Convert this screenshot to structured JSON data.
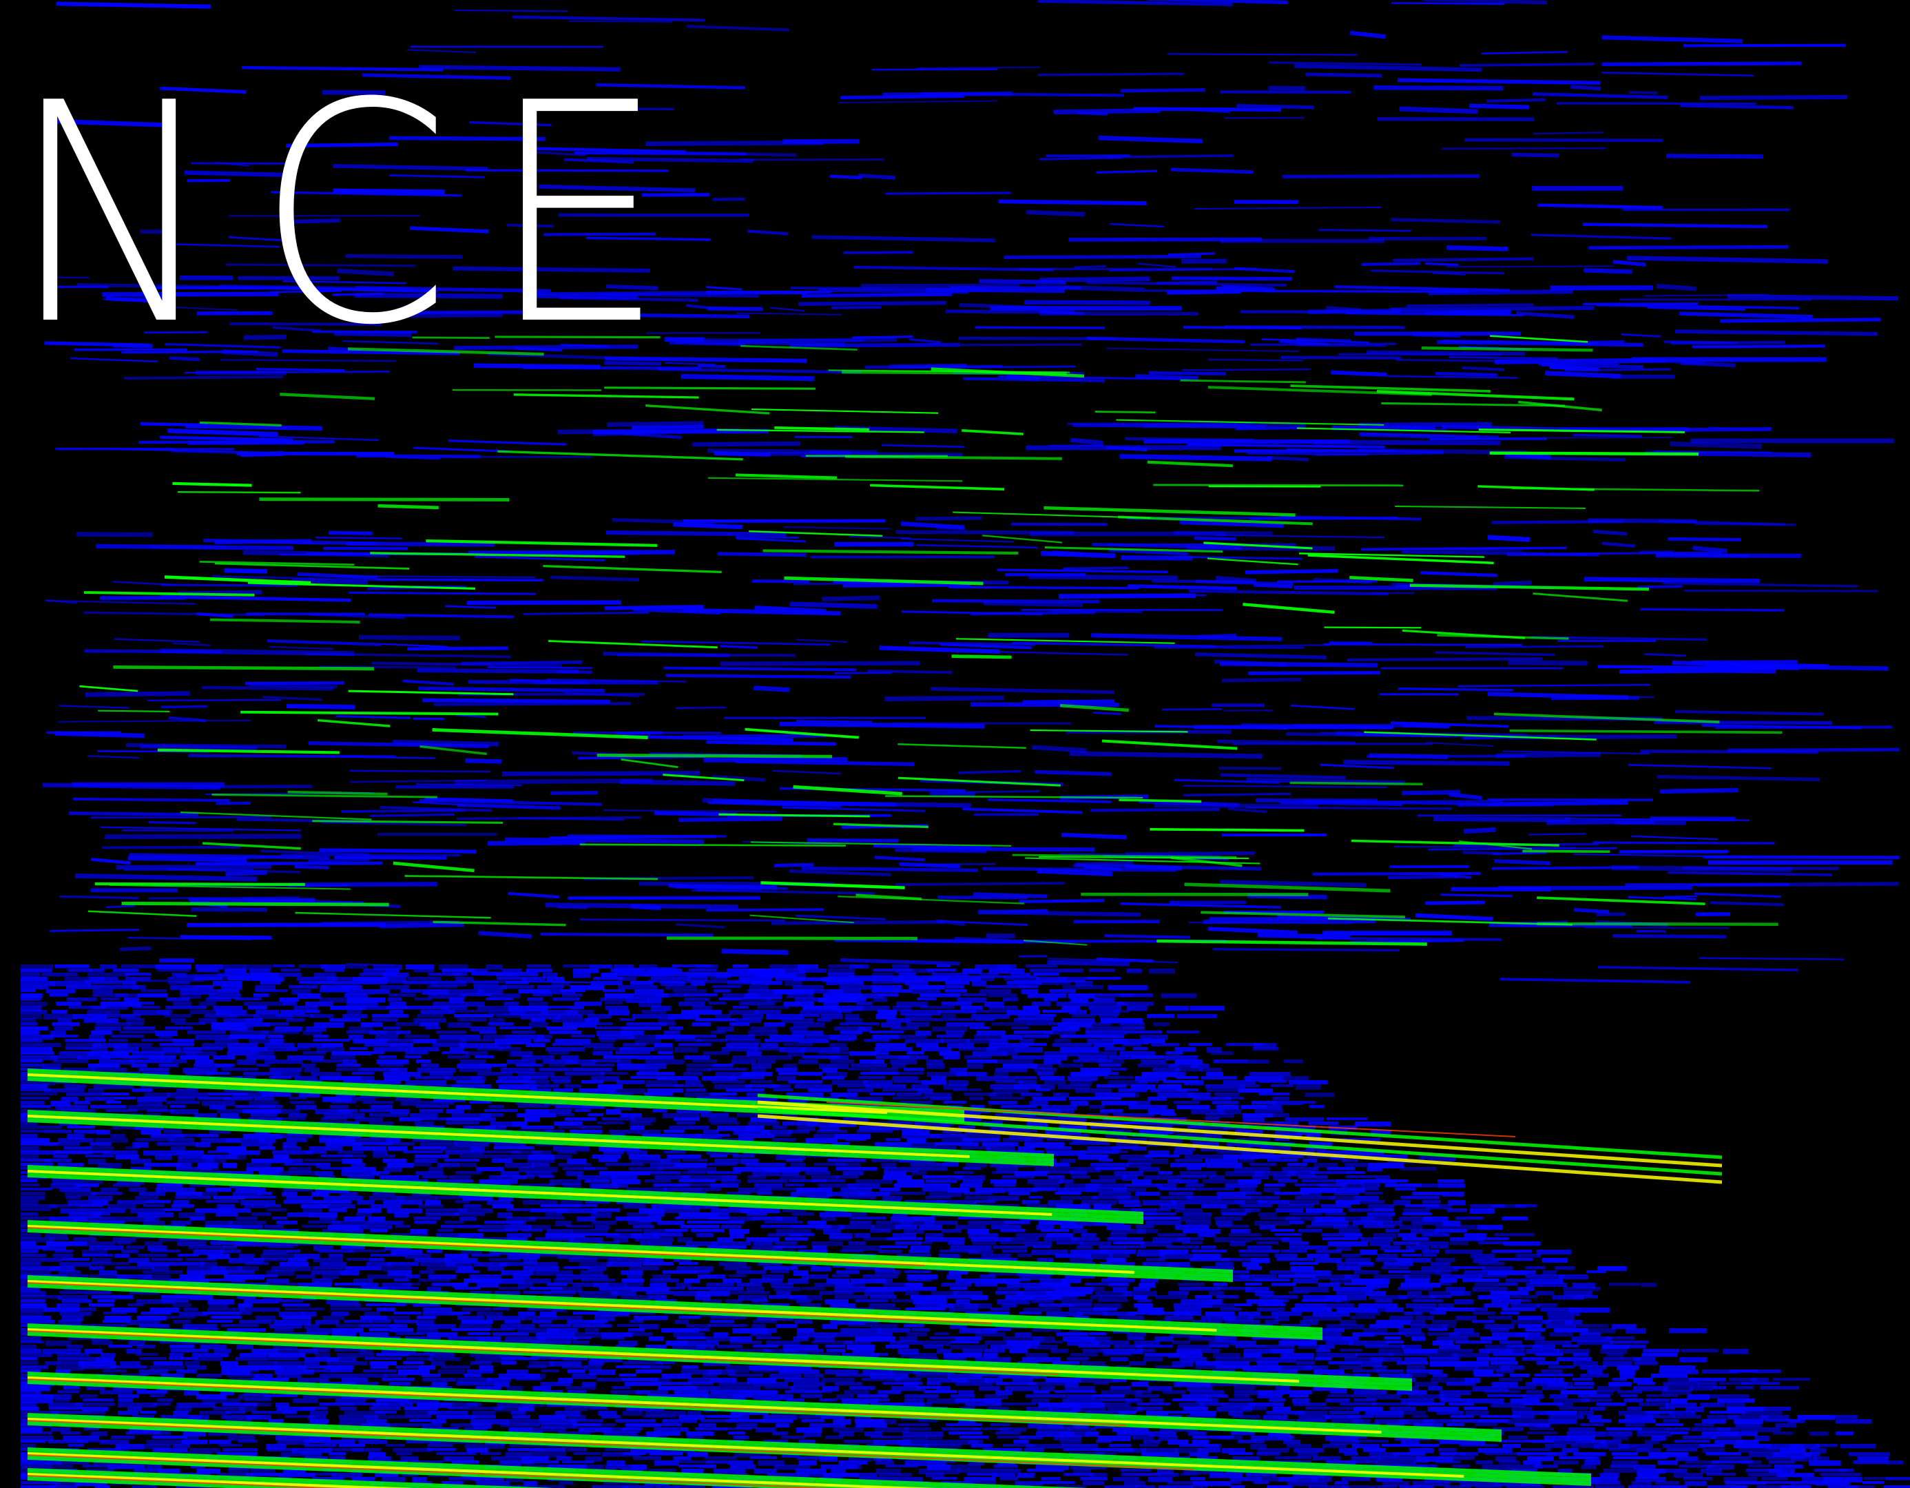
{
  "title_text": "NCE",
  "spectrogram": {
    "description_colormap": "jet",
    "colors": {
      "background": "#000000",
      "low": "#0000ff",
      "mid": "#00ff00",
      "high": "#ffff00",
      "peak": "#ff4000",
      "text": "#ffffff"
    }
  }
}
